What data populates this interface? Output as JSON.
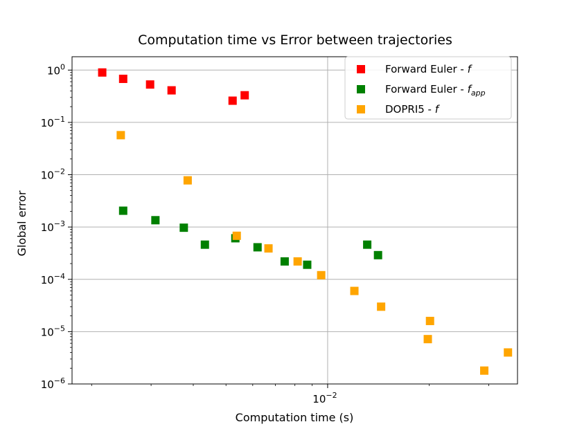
{
  "chart_data": {
    "type": "scatter",
    "title": "Computation time vs Error between trajectories",
    "xlabel": "Computation time (s)",
    "ylabel": "Global error",
    "xscale": "log",
    "yscale": "log",
    "xlim": [
      0.00175,
      0.0365
    ],
    "ylim": [
      1e-06,
      1.8
    ],
    "grid": true,
    "legend_position": "top-right",
    "x_ticks": [
      {
        "value": 0.01,
        "base": "10",
        "exp": "−2"
      }
    ],
    "y_ticks": [
      {
        "value": 1,
        "base": "10",
        "exp": "0"
      },
      {
        "value": 0.1,
        "base": "10",
        "exp": "−1"
      },
      {
        "value": 0.01,
        "base": "10",
        "exp": "−2"
      },
      {
        "value": 0.001,
        "base": "10",
        "exp": "−3"
      },
      {
        "value": 0.0001,
        "base": "10",
        "exp": "−4"
      },
      {
        "value": 1e-05,
        "base": "10",
        "exp": "−5"
      },
      {
        "value": 1e-06,
        "base": "10",
        "exp": "−6"
      }
    ],
    "series": [
      {
        "name": "Forward Euler - f",
        "legend_text": "Forward Euler - ",
        "legend_italic": "f",
        "legend_sub": "",
        "color": "#ff0000",
        "points": [
          {
            "x": 0.00215,
            "y": 0.9
          },
          {
            "x": 0.00248,
            "y": 0.68
          },
          {
            "x": 0.00298,
            "y": 0.53
          },
          {
            "x": 0.00345,
            "y": 0.41
          },
          {
            "x": 0.00523,
            "y": 0.26
          },
          {
            "x": 0.00568,
            "y": 0.33
          }
        ]
      },
      {
        "name": "Forward Euler - f_app",
        "legend_text": "Forward Euler - ",
        "legend_italic": "f",
        "legend_sub": "app",
        "color": "#008000",
        "points": [
          {
            "x": 0.00248,
            "y": 0.00205
          },
          {
            "x": 0.00309,
            "y": 0.00135
          },
          {
            "x": 0.00375,
            "y": 0.00097
          },
          {
            "x": 0.00433,
            "y": 0.00046
          },
          {
            "x": 0.00533,
            "y": 0.00061
          },
          {
            "x": 0.0062,
            "y": 0.00041
          },
          {
            "x": 0.00746,
            "y": 0.00022
          },
          {
            "x": 0.0087,
            "y": 0.00019
          },
          {
            "x": 0.0131,
            "y": 0.00046
          },
          {
            "x": 0.0141,
            "y": 0.00029
          }
        ]
      },
      {
        "name": "DOPRI5 - f",
        "legend_text": "DOPRI5 - ",
        "legend_italic": "f",
        "legend_sub": "",
        "color": "#ffa500",
        "points": [
          {
            "x": 0.00244,
            "y": 0.057
          },
          {
            "x": 0.00385,
            "y": 0.0078
          },
          {
            "x": 0.00538,
            "y": 0.00068
          },
          {
            "x": 0.00668,
            "y": 0.00039
          },
          {
            "x": 0.00815,
            "y": 0.00022
          },
          {
            "x": 0.00957,
            "y": 0.00012
          },
          {
            "x": 0.012,
            "y": 6e-05
          },
          {
            "x": 0.0144,
            "y": 3e-05
          },
          {
            "x": 0.0198,
            "y": 7.2e-06
          },
          {
            "x": 0.0201,
            "y": 1.6e-05
          },
          {
            "x": 0.0291,
            "y": 1.8e-06
          },
          {
            "x": 0.0342,
            "y": 4e-06
          }
        ]
      }
    ]
  }
}
